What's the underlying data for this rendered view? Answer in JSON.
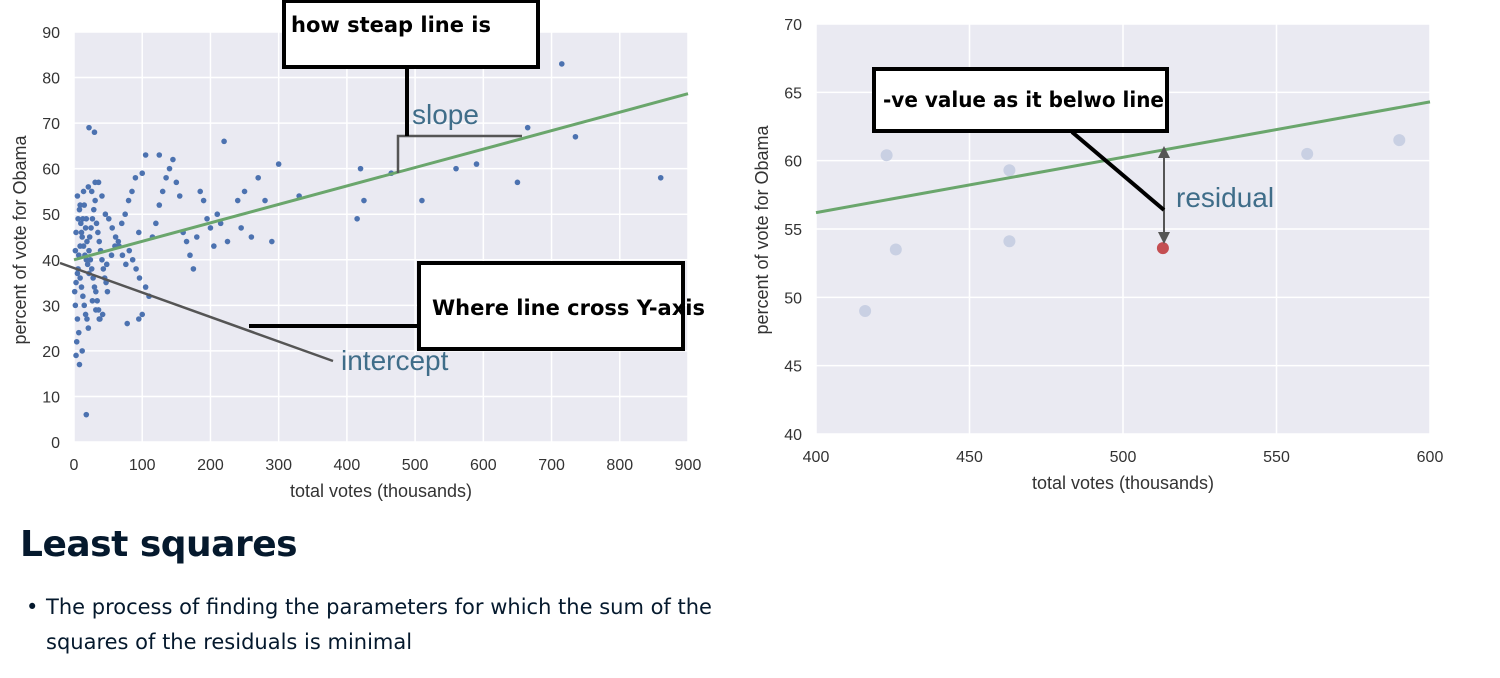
{
  "colors": {
    "plot_bg": "#eaeaf2",
    "grid": "#ffffff",
    "line": "#6aa66c",
    "point_left": "#4c72b0",
    "point_right": "#c9d0e3",
    "highlight_point": "#c44e52",
    "annotation_text": "#3f6d89",
    "annotation_line": "#555555",
    "box_border": "#000000"
  },
  "chart_data": [
    {
      "type": "scatter",
      "xlabel": "total votes (thousands)",
      "ylabel": "percent of vote for Obama",
      "xlim": [
        0,
        900
      ],
      "ylim": [
        0,
        90
      ],
      "x_ticks": [
        "0",
        "100",
        "200",
        "300",
        "400",
        "500",
        "600",
        "700",
        "800",
        "900"
      ],
      "y_ticks": [
        "0",
        "10",
        "20",
        "30",
        "40",
        "50",
        "60",
        "70",
        "80",
        "90"
      ],
      "grid": true,
      "regression_line": {
        "intercept": 40,
        "slope": 0.0405
      },
      "annotations": {
        "slope": "slope",
        "intercept": "intercept",
        "box_slope": "how steap line is",
        "box_intercept": "Where line cross Y-axis"
      },
      "points": [
        [
          5,
          54
        ],
        [
          8,
          51
        ],
        [
          10,
          48
        ],
        [
          12,
          45
        ],
        [
          14,
          43
        ],
        [
          16,
          41
        ],
        [
          18,
          40
        ],
        [
          20,
          39
        ],
        [
          6,
          38
        ],
        [
          9,
          36
        ],
        [
          11,
          34
        ],
        [
          13,
          32
        ],
        [
          15,
          30
        ],
        [
          17,
          28
        ],
        [
          19,
          27
        ],
        [
          21,
          25
        ],
        [
          7,
          24
        ],
        [
          4,
          22
        ],
        [
          3,
          19
        ],
        [
          2,
          30
        ],
        [
          1,
          33
        ],
        [
          3,
          35
        ],
        [
          5,
          37
        ],
        [
          7,
          41
        ],
        [
          9,
          43
        ],
        [
          11,
          46
        ],
        [
          13,
          49
        ],
        [
          15,
          52
        ],
        [
          17,
          47
        ],
        [
          19,
          44
        ],
        [
          22,
          42
        ],
        [
          24,
          40
        ],
        [
          26,
          38
        ],
        [
          28,
          36
        ],
        [
          30,
          34
        ],
        [
          32,
          33
        ],
        [
          34,
          31
        ],
        [
          36,
          29
        ],
        [
          38,
          27
        ],
        [
          23,
          45
        ],
        [
          25,
          47
        ],
        [
          27,
          49
        ],
        [
          29,
          51
        ],
        [
          31,
          53
        ],
        [
          33,
          48
        ],
        [
          35,
          46
        ],
        [
          37,
          44
        ],
        [
          39,
          42
        ],
        [
          41,
          40
        ],
        [
          43,
          38
        ],
        [
          45,
          36
        ],
        [
          47,
          35
        ],
        [
          49,
          33
        ],
        [
          21,
          56
        ],
        [
          26,
          55
        ],
        [
          31,
          57
        ],
        [
          36,
          57
        ],
        [
          41,
          54
        ],
        [
          46,
          50
        ],
        [
          51,
          49
        ],
        [
          56,
          47
        ],
        [
          61,
          45
        ],
        [
          66,
          43
        ],
        [
          71,
          41
        ],
        [
          76,
          39
        ],
        [
          81,
          42
        ],
        [
          86,
          40
        ],
        [
          91,
          38
        ],
        [
          96,
          36
        ],
        [
          12,
          20
        ],
        [
          8,
          17
        ],
        [
          5,
          27
        ],
        [
          2,
          42
        ],
        [
          3,
          46
        ],
        [
          6,
          49
        ],
        [
          9,
          52
        ],
        [
          14,
          55
        ],
        [
          18,
          49
        ],
        [
          22,
          37
        ],
        [
          27,
          31
        ],
        [
          32,
          29
        ],
        [
          37,
          27
        ],
        [
          42,
          28
        ],
        [
          48,
          39
        ],
        [
          55,
          41
        ],
        [
          60,
          43
        ],
        [
          65,
          44
        ],
        [
          70,
          48
        ],
        [
          75,
          50
        ],
        [
          80,
          53
        ],
        [
          85,
          55
        ],
        [
          90,
          58
        ],
        [
          95,
          46
        ],
        [
          22,
          69
        ],
        [
          30,
          68
        ],
        [
          18,
          6
        ],
        [
          100,
          28
        ],
        [
          105,
          34
        ],
        [
          110,
          32
        ],
        [
          115,
          45
        ],
        [
          120,
          48
        ],
        [
          125,
          52
        ],
        [
          130,
          55
        ],
        [
          135,
          58
        ],
        [
          140,
          60
        ],
        [
          145,
          62
        ],
        [
          150,
          57
        ],
        [
          155,
          54
        ],
        [
          160,
          46
        ],
        [
          165,
          44
        ],
        [
          170,
          41
        ],
        [
          175,
          38
        ],
        [
          180,
          45
        ],
        [
          185,
          55
        ],
        [
          190,
          53
        ],
        [
          195,
          49
        ],
        [
          200,
          47
        ],
        [
          205,
          43
        ],
        [
          210,
          50
        ],
        [
          100,
          59
        ],
        [
          105,
          63
        ],
        [
          125,
          63
        ],
        [
          95,
          27
        ],
        [
          78,
          26
        ],
        [
          215,
          48
        ],
        [
          220,
          66
        ],
        [
          225,
          44
        ],
        [
          240,
          53
        ],
        [
          245,
          47
        ],
        [
          250,
          55
        ],
        [
          260,
          45
        ],
        [
          270,
          58
        ],
        [
          280,
          53
        ],
        [
          290,
          44
        ],
        [
          300,
          61
        ],
        [
          330,
          54
        ],
        [
          415,
          49
        ],
        [
          420,
          60
        ],
        [
          425,
          53
        ],
        [
          465,
          59
        ],
        [
          510,
          53
        ],
        [
          560,
          60
        ],
        [
          590,
          61
        ],
        [
          650,
          57
        ],
        [
          665,
          69
        ],
        [
          715,
          83
        ],
        [
          735,
          67
        ],
        [
          860,
          58
        ]
      ]
    },
    {
      "type": "scatter",
      "xlabel": "total votes (thousands)",
      "ylabel": "percent of vote for Obama",
      "xlim": [
        400,
        600
      ],
      "ylim": [
        40,
        70
      ],
      "x_ticks": [
        "400",
        "450",
        "500",
        "550",
        "600"
      ],
      "y_ticks": [
        "40",
        "45",
        "50",
        "55",
        "60",
        "65",
        "70"
      ],
      "grid": true,
      "regression_line": {
        "intercept": 40,
        "slope": 0.0405
      },
      "annotations": {
        "residual": "residual",
        "box_residual": "-ve value as it belwo line"
      },
      "points": [
        [
          416,
          49
        ],
        [
          423,
          60.4
        ],
        [
          426,
          53.5
        ],
        [
          463,
          59.3
        ],
        [
          463,
          54.1
        ],
        [
          560,
          60.5
        ],
        [
          590,
          61.5
        ]
      ],
      "highlighted_point": [
        513,
        53.6
      ]
    }
  ],
  "text": {
    "heading": "Least squares",
    "bullets": [
      "The process of finding the parameters for which the sum of the squares of the residuals is minimal"
    ]
  }
}
